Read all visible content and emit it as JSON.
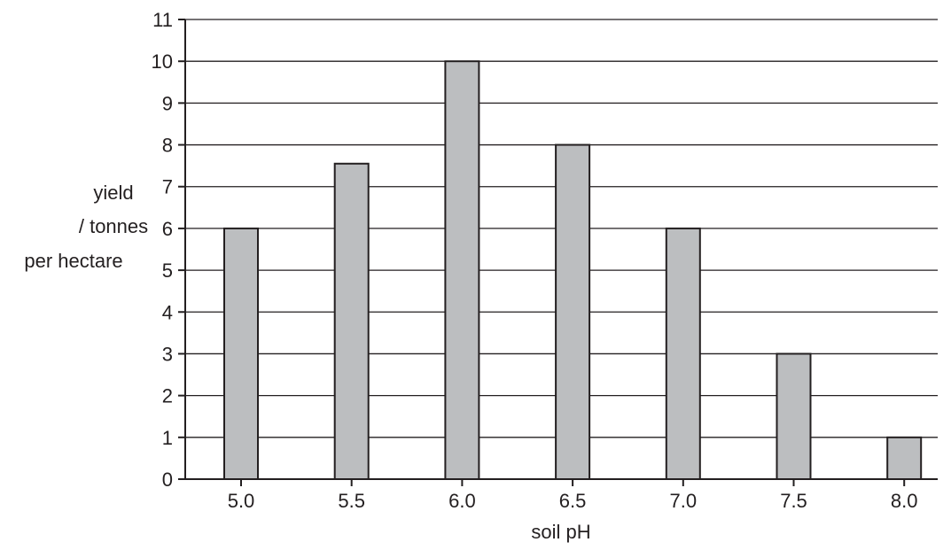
{
  "chart_data": {
    "type": "bar",
    "title": "",
    "xlabel": "soil pH",
    "ylabel_lines": [
      "yield",
      "/ tonnes",
      "per hectare"
    ],
    "categories": [
      "5.0",
      "5.5",
      "6.0",
      "6.5",
      "7.0",
      "7.5",
      "8.0"
    ],
    "values": [
      6,
      7.55,
      10,
      8,
      6,
      3,
      1
    ],
    "ylim": [
      0,
      11
    ],
    "yticks": [
      0,
      1,
      2,
      3,
      4,
      5,
      6,
      7,
      8,
      9,
      10,
      11
    ],
    "grid": "horizontal",
    "legend": "none",
    "colors": {
      "bar_fill": "#bcbec0",
      "bar_stroke": "#231f20",
      "grid": "#231f20",
      "text": "#231f20"
    }
  }
}
